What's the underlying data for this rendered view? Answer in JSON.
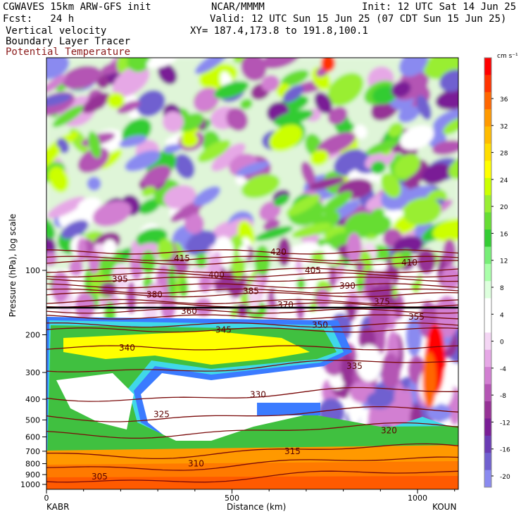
{
  "header": {
    "model": "CGWAVES 15km ARW-GFS init",
    "center": "NCAR/MMMM",
    "init": "Init: 12 UTC Sat 14 Jun 25",
    "fcst": "Fcst:   24 h",
    "valid": "Valid: 12 UTC Sun 15 Jun 25 (07 CDT Sun 15 Jun 25)",
    "field1": "Vertical velocity",
    "field2": "Boundary Layer Tracer",
    "field3": "Potential Temperature",
    "xy": "XY= 187.4,173.8 to 191.8,100.1"
  },
  "axes": {
    "ylabel": "Pressure (hPa), log scale",
    "xlabel": "Distance (km)",
    "left_station": "KABR",
    "right_station": "KOUN",
    "y_ticks": [
      "100",
      "200",
      "300",
      "400",
      "500",
      "600",
      "700",
      "800",
      "900",
      "1000"
    ],
    "x_ticks": [
      "0",
      "500",
      "1000"
    ]
  },
  "colorbar": {
    "units": "cm s⁻¹",
    "labels": [
      "36",
      "32",
      "28",
      "24",
      "20",
      "16",
      "12",
      "8",
      "4",
      "0",
      "-4",
      "-8",
      "-12",
      "-16",
      "-20"
    ],
    "colors": [
      "#ff0000",
      "#ff3300",
      "#ff6600",
      "#ff9900",
      "#ffbb00",
      "#ffdd00",
      "#ffff00",
      "#ccff00",
      "#99ee33",
      "#66dd33",
      "#33cc33",
      "#77ee77",
      "#aaffaa",
      "#ddffdd",
      "#ffffff",
      "#ffffff",
      "#f4d6f4",
      "#e6a8e6",
      "#d27fd2",
      "#b455b4",
      "#963296",
      "#7a1e96",
      "#6a3cb4",
      "#7060d0",
      "#8a8af0"
    ]
  },
  "chart_data": {
    "type": "heatmap",
    "title": "Vertical velocity",
    "xlabel": "Distance (km)",
    "ylabel": "Pressure (hPa), log scale",
    "xlim": [
      0,
      1110
    ],
    "ylim": [
      1000,
      10
    ],
    "colorbar_range": [
      -22,
      40
    ],
    "theta_contours": [
      {
        "value": 305,
        "p": 920
      },
      {
        "value": 310,
        "p": 800
      },
      {
        "value": 315,
        "p": 700
      },
      {
        "value": 320,
        "p": 560
      },
      {
        "value": 325,
        "p": 470
      },
      {
        "value": 330,
        "p": 380
      },
      {
        "value": 335,
        "p": 280
      },
      {
        "value": 340,
        "p": 230
      },
      {
        "value": 345,
        "p": 190
      },
      {
        "value": 350,
        "p": 180
      },
      {
        "value": 355,
        "p": 165
      },
      {
        "value": 360,
        "p": 155
      },
      {
        "value": 370,
        "p": 145
      },
      {
        "value": 375,
        "p": 140
      },
      {
        "value": 380,
        "p": 130
      },
      {
        "value": 385,
        "p": 125
      },
      {
        "value": 390,
        "p": 118
      },
      {
        "value": 395,
        "p": 110
      },
      {
        "value": 400,
        "p": 105
      },
      {
        "value": 405,
        "p": 100
      },
      {
        "value": 410,
        "p": 92
      },
      {
        "value": 415,
        "p": 88
      },
      {
        "value": 420,
        "p": 82
      }
    ]
  }
}
